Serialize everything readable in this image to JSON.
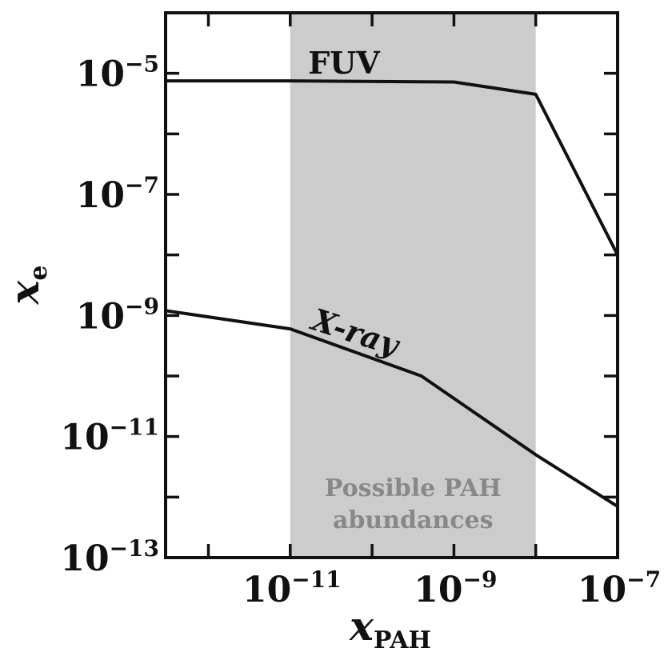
{
  "chart_data": {
    "type": "line",
    "xscale": "log",
    "yscale": "log",
    "xlim": [
      3e-13,
      1e-07
    ],
    "ylim": [
      1e-13,
      0.0001
    ],
    "xlabel": {
      "main": "x",
      "sub": "PAH"
    },
    "ylabel": {
      "main": "x",
      "sub": "e"
    },
    "x_ticks": [
      {
        "value": 1e-11,
        "base": "10",
        "exp": "−11"
      },
      {
        "value": 1e-09,
        "base": "10",
        "exp": "−9"
      },
      {
        "value": 1e-07,
        "base": "10",
        "exp": "−7"
      }
    ],
    "y_ticks": [
      {
        "value": 1e-13,
        "base": "10",
        "exp": "−13"
      },
      {
        "value": 1e-11,
        "base": "10",
        "exp": "−11"
      },
      {
        "value": 1e-09,
        "base": "10",
        "exp": "−9"
      },
      {
        "value": 1e-07,
        "base": "10",
        "exp": "−7"
      },
      {
        "value": 1e-05,
        "base": "10",
        "exp": "−5"
      }
    ],
    "x_minor_ticks": [
      1e-12,
      1e-10,
      1e-08
    ],
    "y_minor_ticks": [
      1e-12,
      1e-10,
      1e-08,
      1e-06
    ],
    "shaded_band": {
      "x_range": [
        1e-11,
        1e-08
      ],
      "color": "#cccccc",
      "label_lines": [
        "Possible PAH",
        "abundances"
      ],
      "label_color": "#888888"
    },
    "series": [
      {
        "name": "FUV",
        "color": "#111111",
        "points": [
          [
            3e-13,
            7.5e-06
          ],
          [
            1e-11,
            7.5e-06
          ],
          [
            1e-09,
            7.2e-06
          ],
          [
            1e-08,
            4.5e-06
          ],
          [
            1e-07,
            1e-08
          ]
        ]
      },
      {
        "name": "X-ray",
        "color": "#111111",
        "points": [
          [
            3e-13,
            1.2e-09
          ],
          [
            1e-11,
            6e-10
          ],
          [
            4e-10,
            1e-10
          ],
          [
            1e-08,
            5e-12
          ],
          [
            1e-07,
            7e-13
          ]
        ]
      }
    ]
  }
}
